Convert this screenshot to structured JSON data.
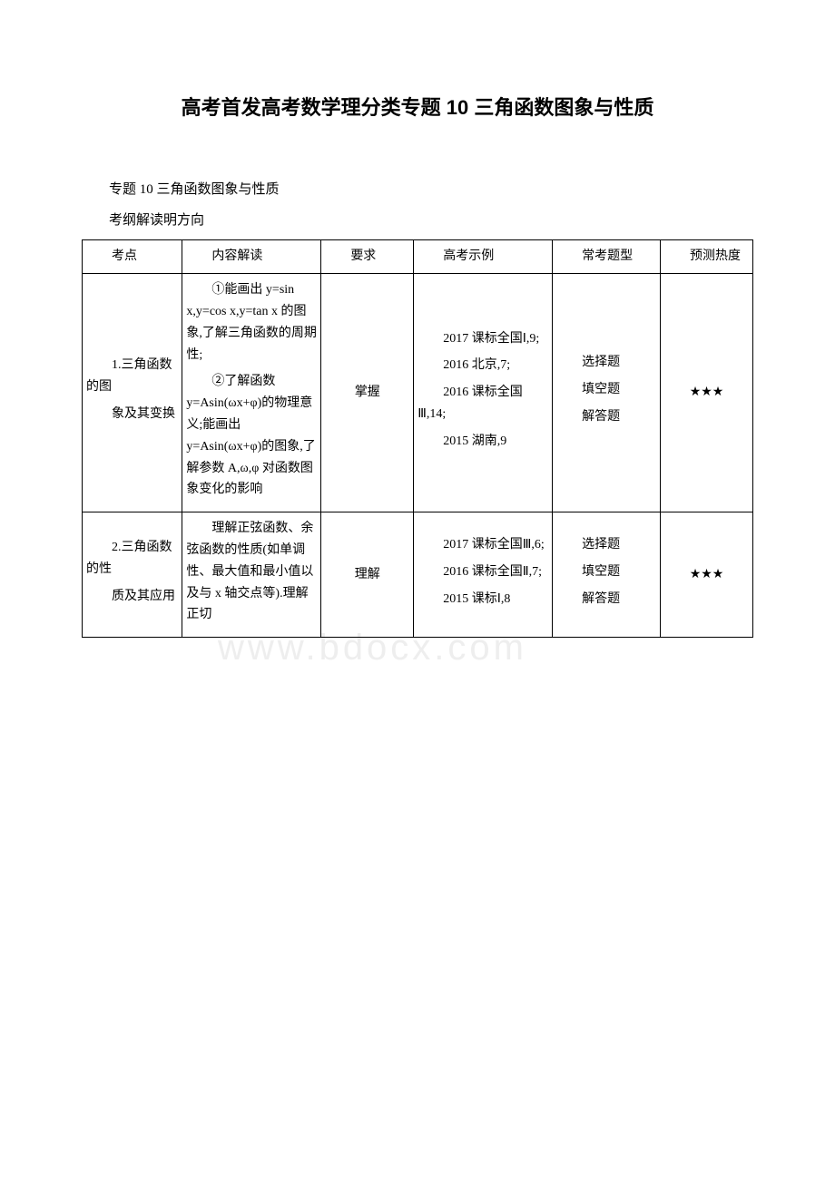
{
  "page": {
    "title": "高考首发高考数学理分类专题 10 三角函数图象与性质",
    "subtitle_1": "专题 10 三角函数图象与性质",
    "subtitle_2": "考纲解读明方向"
  },
  "watermark": "www.bdocx.com",
  "table": {
    "headers": {
      "c1": "考点",
      "c2": "内容解读",
      "c3": "要求",
      "c4": "高考示例",
      "c5": "常考题型",
      "c6": "预测热度"
    },
    "rows": [
      {
        "topic_line1": "1.三角函数的图",
        "topic_line2": "象及其变换",
        "content_p1": "①能画出 y=sin x,y=cos x,y=tan x 的图象,了解三角函数的周期性;",
        "content_p2": "②了解函数 y=Asin(ωx+φ)的物理意义;能画出 y=Asin(ωx+φ)的图象,了解参数 A,ω,φ 对函数图象变化的影响",
        "req": "掌握",
        "ex_p1": "2017 课标全国Ⅰ,9;",
        "ex_p2": "2016 北京,7;",
        "ex_p3": "2016 课标全国Ⅲ,14;",
        "ex_p4": "2015 湖南,9",
        "qt_p1": "选择题",
        "qt_p2": "填空题",
        "qt_p3": "解答题",
        "heat": "★★★"
      },
      {
        "topic_line1": "2.三角函数的性",
        "topic_line2": "质及其应用",
        "content_p1": "理解正弦函数、余弦函数的性质(如单调性、最大值和最小值以及与 x 轴交点等).理解正切",
        "req": "理解",
        "ex_p1": "2017 课标全国Ⅲ,6;",
        "ex_p2": "2016 课标全国Ⅱ,7;",
        "ex_p3": "2015 课标Ⅰ,8",
        "qt_p1": "选择题",
        "qt_p2": "填空题",
        "qt_p3": "解答题",
        "heat": "★★★"
      }
    ]
  }
}
